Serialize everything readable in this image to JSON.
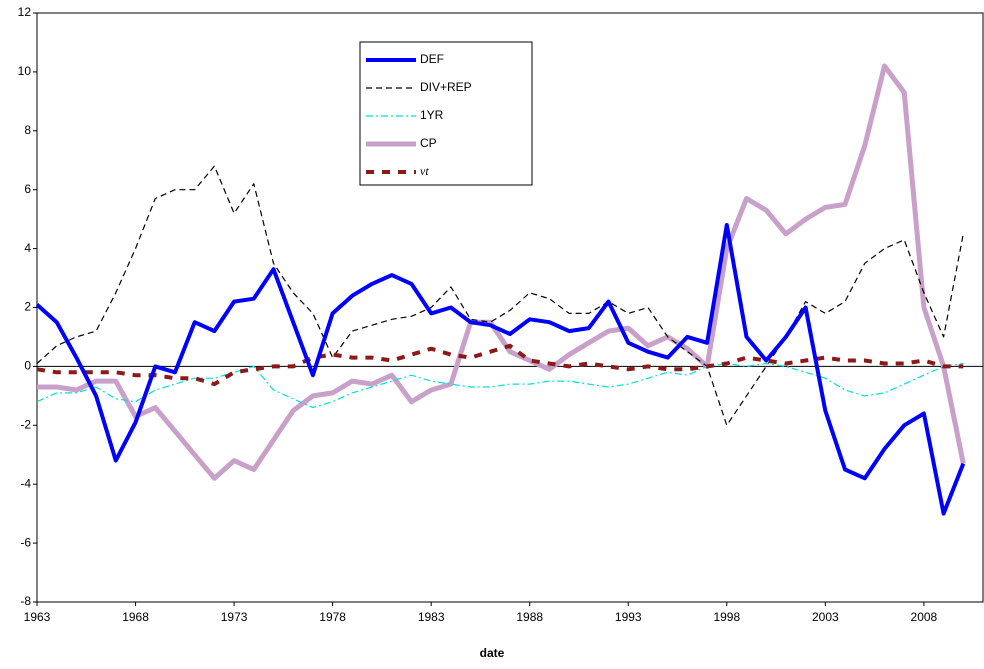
{
  "chart_data": {
    "type": "line",
    "x_label": "date",
    "x": [
      1963,
      1964,
      1965,
      1966,
      1967,
      1968,
      1969,
      1970,
      1971,
      1972,
      1973,
      1974,
      1975,
      1976,
      1977,
      1978,
      1979,
      1980,
      1981,
      1982,
      1983,
      1984,
      1985,
      1986,
      1987,
      1988,
      1989,
      1990,
      1991,
      1992,
      1993,
      1994,
      1995,
      1996,
      1997,
      1998,
      1999,
      2000,
      2001,
      2002,
      2003,
      2004,
      2005,
      2006,
      2007,
      2008,
      2009,
      2010
    ],
    "xlim": [
      1963,
      2011
    ],
    "xticks": [
      1963,
      1968,
      1973,
      1978,
      1983,
      1988,
      1993,
      1998,
      2003,
      2008
    ],
    "ylim": [
      -8,
      12
    ],
    "yticks": [
      -8,
      -6,
      -4,
      -2,
      0,
      2,
      4,
      6,
      8,
      10,
      12
    ],
    "series": [
      {
        "name": "DEF",
        "color": "#0000ff",
        "values": [
          2.1,
          1.5,
          0.3,
          -1.0,
          -3.2,
          -1.9,
          0.0,
          -0.2,
          1.5,
          1.2,
          2.2,
          2.3,
          3.3,
          1.5,
          -0.3,
          1.8,
          2.4,
          2.8,
          3.1,
          2.8,
          1.8,
          2.0,
          1.5,
          1.4,
          1.1,
          1.6,
          1.5,
          1.2,
          1.3,
          2.2,
          0.8,
          0.5,
          0.3,
          1.0,
          0.8,
          4.8,
          1.0,
          0.2,
          1.0,
          2.0,
          -1.5,
          -3.5,
          -3.8,
          -2.8,
          -2.0,
          -1.6,
          -5.0,
          -3.3
        ]
      },
      {
        "name": "DIV+REP",
        "color": "#000000",
        "values": [
          0.1,
          0.7,
          1.0,
          1.2,
          2.5,
          4.0,
          5.7,
          6.0,
          6.0,
          6.8,
          5.2,
          6.2,
          3.5,
          2.5,
          1.8,
          0.3,
          1.2,
          1.4,
          1.6,
          1.7,
          2.0,
          2.7,
          1.6,
          1.5,
          1.9,
          2.5,
          2.3,
          1.8,
          1.8,
          2.2,
          1.8,
          2.0,
          1.0,
          0.5,
          0.0,
          -2.0,
          -1.0,
          0.0,
          1.0,
          2.2,
          1.8,
          2.2,
          3.5,
          4.0,
          4.3,
          2.5,
          1.0,
          4.5
        ]
      },
      {
        "name": "1YR",
        "color": "#00e0e0",
        "values": [
          -1.2,
          -0.9,
          -0.9,
          -0.7,
          -1.1,
          -1.2,
          -0.8,
          -0.6,
          -0.4,
          -0.4,
          -0.2,
          0.0,
          -0.8,
          -1.1,
          -1.4,
          -1.2,
          -0.9,
          -0.7,
          -0.5,
          -0.3,
          -0.5,
          -0.6,
          -0.7,
          -0.7,
          -0.6,
          -0.6,
          -0.5,
          -0.5,
          -0.6,
          -0.7,
          -0.6,
          -0.4,
          -0.2,
          -0.3,
          0.0,
          0.1,
          0.0,
          0.1,
          0.0,
          -0.2,
          -0.4,
          -0.8,
          -1.0,
          -0.9,
          -0.6,
          -0.3,
          0.0,
          0.1
        ]
      },
      {
        "name": "CP",
        "color": "#c9a0c9",
        "values": [
          -0.7,
          -0.7,
          -0.8,
          -0.5,
          -0.5,
          -1.7,
          -1.4,
          -2.2,
          -3.0,
          -3.8,
          -3.2,
          -3.5,
          -2.5,
          -1.5,
          -1.0,
          -0.9,
          -0.5,
          -0.6,
          -0.3,
          -1.2,
          -0.8,
          -0.6,
          1.5,
          1.5,
          0.5,
          0.2,
          -0.1,
          0.4,
          0.8,
          1.2,
          1.3,
          0.7,
          1.0,
          0.6,
          0.0,
          4.0,
          5.7,
          5.3,
          4.5,
          5.0,
          5.4,
          5.5,
          7.5,
          10.2,
          9.3,
          2.0,
          0.0,
          -3.3
        ]
      },
      {
        "name": "νt",
        "color": "#8b1a1a",
        "values": [
          -0.1,
          -0.2,
          -0.2,
          -0.2,
          -0.2,
          -0.3,
          -0.3,
          -0.4,
          -0.4,
          -0.6,
          -0.2,
          -0.1,
          0.0,
          0.0,
          0.3,
          0.4,
          0.3,
          0.3,
          0.2,
          0.4,
          0.6,
          0.4,
          0.3,
          0.5,
          0.7,
          0.2,
          0.1,
          0.0,
          0.1,
          0.0,
          -0.1,
          0.0,
          -0.1,
          -0.1,
          0.0,
          0.1,
          0.3,
          0.2,
          0.1,
          0.2,
          0.3,
          0.2,
          0.2,
          0.1,
          0.1,
          0.2,
          0.0,
          0.0
        ]
      }
    ]
  }
}
